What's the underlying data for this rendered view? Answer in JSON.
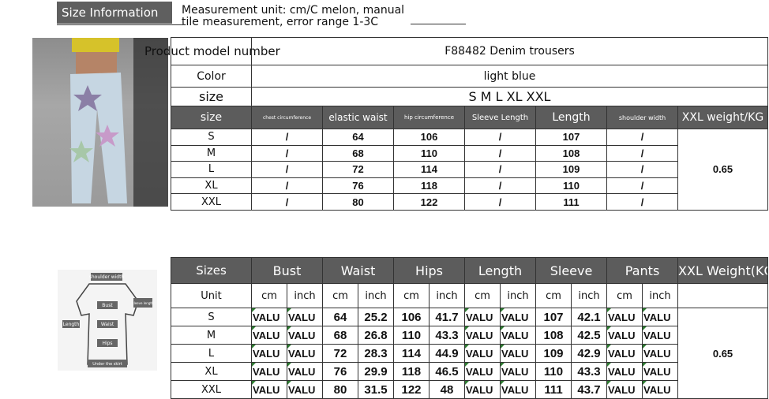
{
  "header": {
    "tab": "Size Information",
    "note": "Measurement unit: cm/C melon, manual tile measurement, error range 1-3C"
  },
  "info": {
    "model_label": "Product model number",
    "model_value": "F88482 Denim trousers",
    "color_label": "Color",
    "color_value": "light blue",
    "size_label": "size",
    "size_value": "S M L XL XXL"
  },
  "table1": {
    "headers": [
      "size",
      "chest circumference",
      "elastic waist",
      "hip circumference",
      "Sleeve Length",
      "Length",
      "shoulder width",
      "XXL weight/KG"
    ],
    "rows": [
      [
        "S",
        "/",
        "64",
        "106",
        "/",
        "107",
        "/"
      ],
      [
        "M",
        "/",
        "68",
        "110",
        "/",
        "108",
        "/"
      ],
      [
        "L",
        "/",
        "72",
        "114",
        "/",
        "109",
        "/"
      ],
      [
        "XL",
        "/",
        "76",
        "118",
        "/",
        "110",
        "/"
      ],
      [
        "XXL",
        "/",
        "80",
        "122",
        "/",
        "111",
        "/"
      ]
    ],
    "weight": "0.65"
  },
  "table2": {
    "headers": [
      "Sizes",
      "Bust",
      "Waist",
      "Hips",
      "Length",
      "Sleeve",
      "Pants",
      "XXL Weight(KG)"
    ],
    "unit_label": "Unit",
    "units": [
      "cm",
      "inch",
      "cm",
      "inch",
      "cm",
      "inch",
      "cm",
      "inch",
      "cm",
      "inch",
      "cm",
      "inch"
    ],
    "rows": [
      [
        "S",
        "VALU",
        "VALU",
        "64",
        "25.2",
        "106",
        "41.7",
        "VALU",
        "VALU",
        "107",
        "42.1",
        "VALU",
        "VALU"
      ],
      [
        "M",
        "VALU",
        "VALU",
        "68",
        "26.8",
        "110",
        "43.3",
        "VALU",
        "VALU",
        "108",
        "42.5",
        "VALU",
        "VALU"
      ],
      [
        "L",
        "VALU",
        "VALU",
        "72",
        "28.3",
        "114",
        "44.9",
        "VALU",
        "VALU",
        "109",
        "42.9",
        "VALU",
        "VALU"
      ],
      [
        "XL",
        "VALU",
        "VALU",
        "76",
        "29.9",
        "118",
        "46.5",
        "VALU",
        "VALU",
        "110",
        "43.3",
        "VALU",
        "VALU"
      ],
      [
        "XXL",
        "VALU",
        "VALU",
        "80",
        "31.5",
        "122",
        "48",
        "VALU",
        "VALU",
        "111",
        "43.7",
        "VALU",
        "VALU"
      ]
    ],
    "weight": "0.65"
  },
  "diagram": {
    "labels": [
      "shoulder width",
      "Bust",
      "sleeve length",
      "Length",
      "Waist",
      "Hips",
      "Under the skirt"
    ]
  }
}
